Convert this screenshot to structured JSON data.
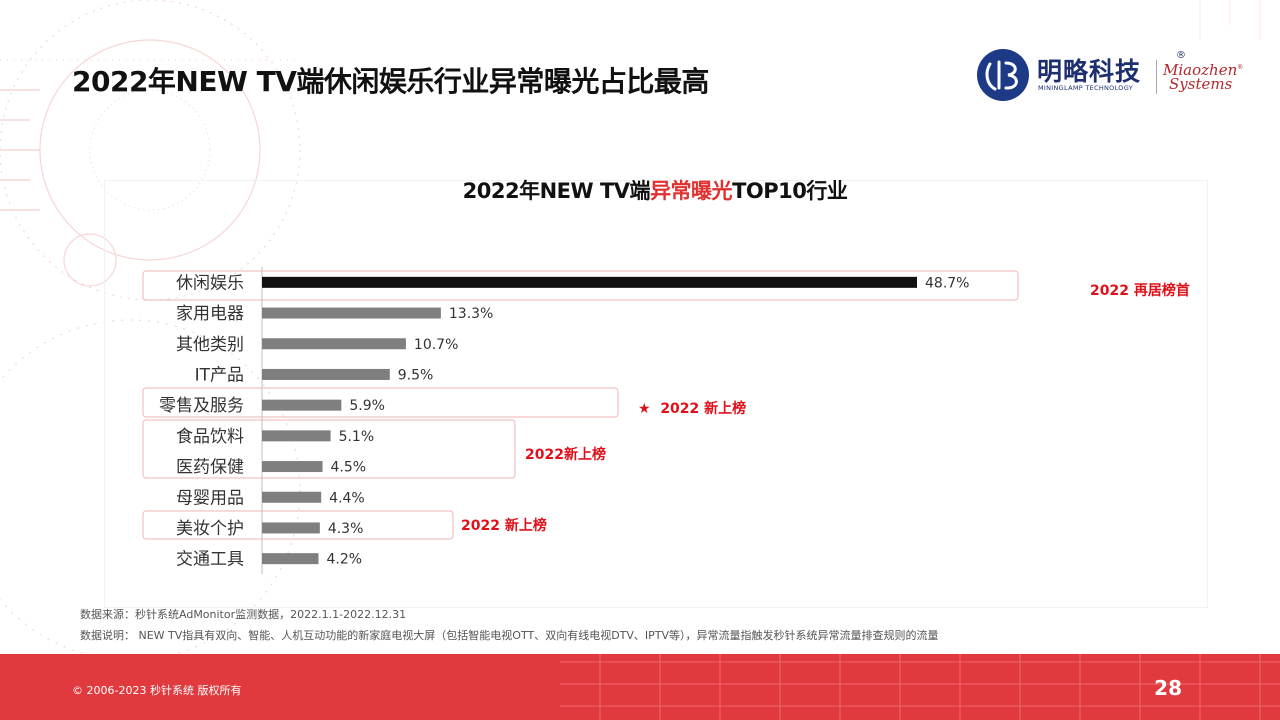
{
  "slide_title": "2022年NEW TV端休闲娱乐行业异常曝光占比最高",
  "logo": {
    "cn": "明略科技",
    "reg": "®",
    "en": "MININGLAMP TECHNOLOGY",
    "mz_line1": "Miaozhen",
    "mz_line2": "Systems",
    "mz_reg": "®"
  },
  "chart_title": {
    "part1": "2022年NEW TV端",
    "part2": "异常曝光",
    "part3": "TOP10行业",
    "highlight_color": "#e03030"
  },
  "chart_data": {
    "type": "bar",
    "orientation": "horizontal",
    "title": "2022年NEW TV端异常曝光TOP10行业",
    "categories": [
      "休闲娱乐",
      "家用电器",
      "其他类别",
      "IT产品",
      "零售及服务",
      "食品饮料",
      "医药保健",
      "母婴用品",
      "美妆个护",
      "交通工具"
    ],
    "values": [
      48.7,
      13.3,
      10.7,
      9.5,
      5.9,
      5.1,
      4.5,
      4.4,
      4.3,
      4.2
    ],
    "value_labels": [
      "48.7%",
      "13.3%",
      "10.7%",
      "9.5%",
      "5.9%",
      "5.1%",
      "4.5%",
      "4.4%",
      "4.3%",
      "4.2%"
    ],
    "unit": "%",
    "bar_colors": [
      "#111111",
      "#7f7f7f",
      "#7f7f7f",
      "#7f7f7f",
      "#7f7f7f",
      "#7f7f7f",
      "#7f7f7f",
      "#7f7f7f",
      "#7f7f7f",
      "#7f7f7f"
    ],
    "xlim": [
      0,
      50
    ],
    "grid": false,
    "legend": "none"
  },
  "annotations": {
    "top1": "2022 再居榜首",
    "retail_star": "★",
    "retail": "2022 新上榜",
    "food_medicine": "2022新上榜",
    "beauty": "2022 新上榜",
    "color": "#e0101a"
  },
  "source_line1": "数据来源：秒针系统AdMonitor监测数据，2022.1.1-2022.12.31",
  "source_line2": "数据说明： NEW TV指具有双向、智能、人机互动功能的新家庭电视大屏（包括智能电视OTT、双向有线电视DTV、IPTV等），异常流量指触发秒针系统异常流量排查规则的流量",
  "footer": {
    "copyright": "© 2006-2023 秒针系统 版权所有",
    "page_number": "28",
    "background": "#e03a3e"
  }
}
